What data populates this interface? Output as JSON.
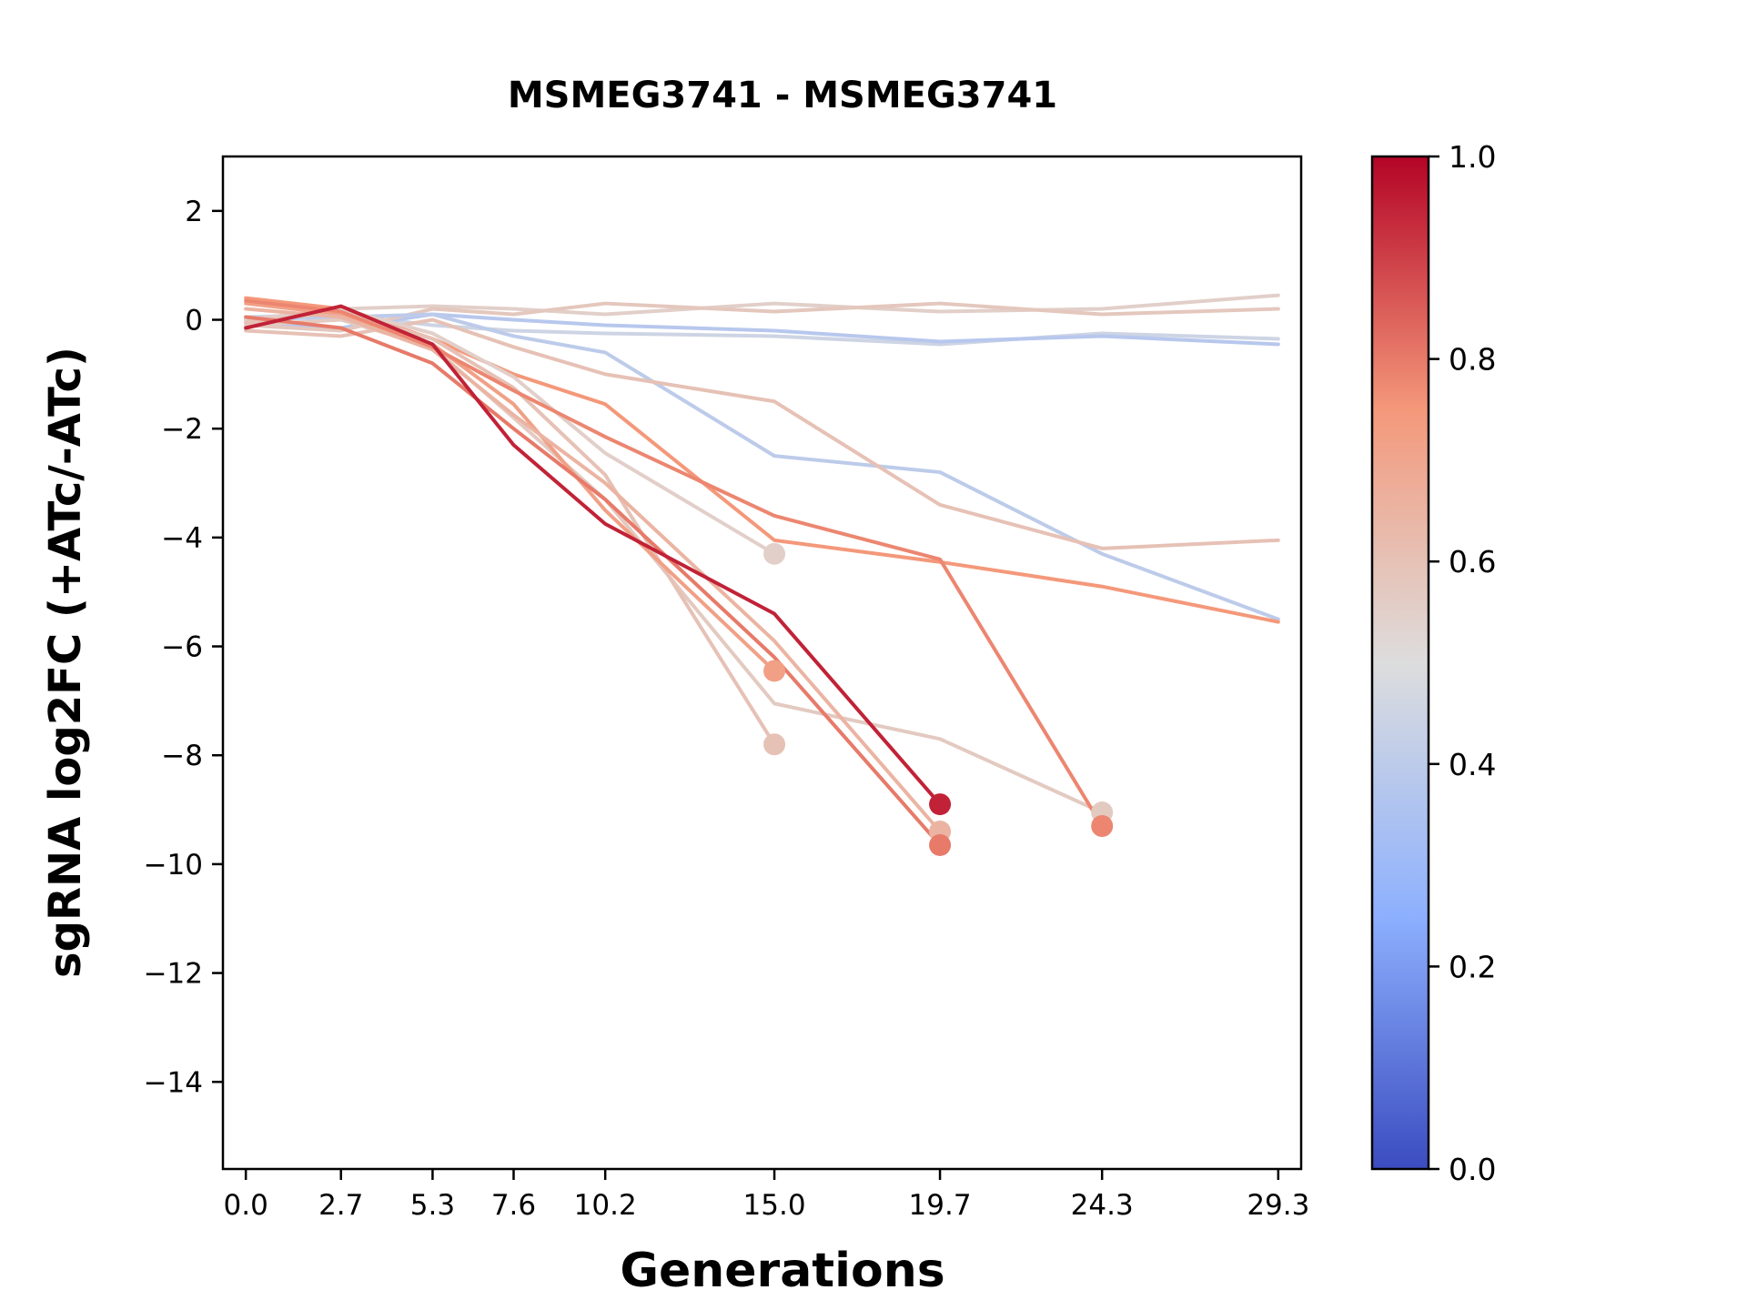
{
  "chart_data": {
    "type": "line",
    "title": "MSMEG3741 - MSMEG3741",
    "xlabel": "Generations",
    "ylabel": "sgRNA log2FC (+ATc/-ATc)",
    "xlim": [
      -0.65,
      29.95
    ],
    "ylim": [
      -15.6,
      3.0
    ],
    "grid": false,
    "x_ticks": [
      0.0,
      2.7,
      5.3,
      7.6,
      10.2,
      15.0,
      19.7,
      24.3,
      29.3
    ],
    "x_tick_labels": [
      "0.0",
      "2.7",
      "5.3",
      "7.6",
      "10.2",
      "15.0",
      "19.7",
      "24.3",
      "29.3"
    ],
    "y_ticks": [
      2,
      0,
      -2,
      -4,
      -6,
      -8,
      -10,
      -12,
      -14
    ],
    "colormap": {
      "name": "coolwarm",
      "anchors": [
        {
          "t": 0.0,
          "color": "#3b4cc0"
        },
        {
          "t": 0.25,
          "color": "#8db0fe"
        },
        {
          "t": 0.5,
          "color": "#dddddd"
        },
        {
          "t": 0.75,
          "color": "#f4987a"
        },
        {
          "t": 1.0,
          "color": "#b40426"
        }
      ]
    },
    "colorbar": {
      "min": 0.0,
      "max": 1.0,
      "tick_values": [
        0.0,
        0.2,
        0.4,
        0.6,
        0.8,
        1.0
      ],
      "tick_labels": [
        "0.0",
        "0.2",
        "0.4",
        "0.6",
        "0.8",
        "1.0"
      ]
    },
    "series": [
      {
        "c": 0.45,
        "end_marker": false,
        "x": [
          0.0,
          2.7,
          5.3,
          7.6,
          10.2,
          15.0,
          19.7,
          24.3,
          29.3
        ],
        "y": [
          0.05,
          0.1,
          -0.1,
          -0.2,
          -0.25,
          -0.3,
          -0.45,
          -0.25,
          -0.35
        ]
      },
      {
        "c": 0.38,
        "end_marker": false,
        "x": [
          0.0,
          2.7,
          5.3,
          7.6,
          10.2,
          15.0,
          19.7,
          24.3,
          29.3
        ],
        "y": [
          -0.05,
          -0.15,
          0.1,
          0.0,
          -0.1,
          -0.2,
          -0.4,
          -0.3,
          -0.45
        ]
      },
      {
        "c": 0.55,
        "end_marker": false,
        "x": [
          0.0,
          2.7,
          5.3,
          7.6,
          10.2,
          15.0,
          19.7,
          24.3,
          29.3
        ],
        "y": [
          0.0,
          0.2,
          0.25,
          0.2,
          0.1,
          0.3,
          0.15,
          0.2,
          0.45
        ]
      },
      {
        "c": 0.58,
        "end_marker": false,
        "x": [
          0.0,
          2.7,
          5.3,
          7.6,
          10.2,
          15.0,
          19.7,
          24.3,
          29.3
        ],
        "y": [
          -0.1,
          -0.2,
          0.2,
          0.1,
          0.3,
          0.15,
          0.3,
          0.1,
          0.2
        ]
      },
      {
        "c": 0.4,
        "end_marker": false,
        "x": [
          0.0,
          2.7,
          5.3,
          7.6,
          10.2,
          15.0,
          19.7,
          24.3,
          29.3
        ],
        "y": [
          0.0,
          0.05,
          0.1,
          -0.3,
          -0.6,
          -2.5,
          -2.8,
          -4.3,
          -5.5
        ]
      },
      {
        "c": 0.6,
        "end_marker": false,
        "x": [
          0.0,
          2.7,
          5.3,
          7.6,
          10.2,
          15.0,
          19.7,
          24.3,
          29.3
        ],
        "y": [
          -0.2,
          -0.3,
          0.0,
          -0.5,
          -1.0,
          -1.5,
          -3.4,
          -4.2,
          -4.05
        ]
      },
      {
        "c": 0.75,
        "end_marker": false,
        "x": [
          0.0,
          2.7,
          5.3,
          7.6,
          10.2,
          15.0,
          19.7,
          24.3,
          29.3
        ],
        "y": [
          0.4,
          0.2,
          -0.35,
          -1.0,
          -1.55,
          -4.05,
          -4.45,
          -4.9,
          -5.55
        ]
      },
      {
        "c": 0.57,
        "end_marker": true,
        "x": [
          0.0,
          2.7,
          5.3,
          7.6,
          10.2,
          15.0,
          19.7,
          24.3
        ],
        "y": [
          -0.1,
          0.0,
          -0.5,
          -1.8,
          -3.3,
          -7.05,
          -7.7,
          -9.05
        ]
      },
      {
        "c": 0.55,
        "end_marker": true,
        "x": [
          0.0,
          2.7,
          5.3,
          7.6,
          10.2,
          15.0
        ],
        "y": [
          0.0,
          0.2,
          -0.25,
          -1.05,
          -2.45,
          -4.3
        ]
      },
      {
        "c": 0.6,
        "end_marker": true,
        "x": [
          0.0,
          2.7,
          5.3,
          7.6,
          10.2,
          15.0
        ],
        "y": [
          -0.05,
          0.15,
          -0.35,
          -1.25,
          -2.85,
          -7.8
        ]
      },
      {
        "c": 0.72,
        "end_marker": true,
        "x": [
          0.0,
          2.7,
          5.3,
          7.6,
          10.2,
          15.0
        ],
        "y": [
          0.3,
          0.1,
          -0.45,
          -1.55,
          -3.5,
          -6.45
        ]
      },
      {
        "c": 0.65,
        "end_marker": true,
        "x": [
          0.0,
          2.7,
          5.3,
          7.6,
          10.2,
          15.0,
          19.7
        ],
        "y": [
          0.2,
          0.05,
          -0.55,
          -1.75,
          -3.0,
          -5.9,
          -9.4
        ]
      },
      {
        "c": 0.8,
        "end_marker": true,
        "x": [
          0.0,
          2.7,
          5.3,
          7.6,
          10.2,
          15.0,
          19.7
        ],
        "y": [
          0.05,
          -0.15,
          -0.8,
          -2.0,
          -3.3,
          -6.2,
          -9.65
        ]
      },
      {
        "c": 0.78,
        "end_marker": true,
        "x": [
          0.0,
          2.7,
          5.3,
          7.6,
          10.2,
          15.0,
          19.7,
          24.3
        ],
        "y": [
          0.35,
          0.15,
          -0.5,
          -1.3,
          -2.15,
          -3.6,
          -4.4,
          -9.3
        ]
      },
      {
        "c": 0.95,
        "end_marker": true,
        "x": [
          0.0,
          2.7,
          5.3,
          7.6,
          10.2,
          15.0,
          19.7
        ],
        "y": [
          -0.15,
          0.25,
          -0.45,
          -2.3,
          -3.75,
          -5.4,
          -8.9
        ]
      }
    ]
  }
}
